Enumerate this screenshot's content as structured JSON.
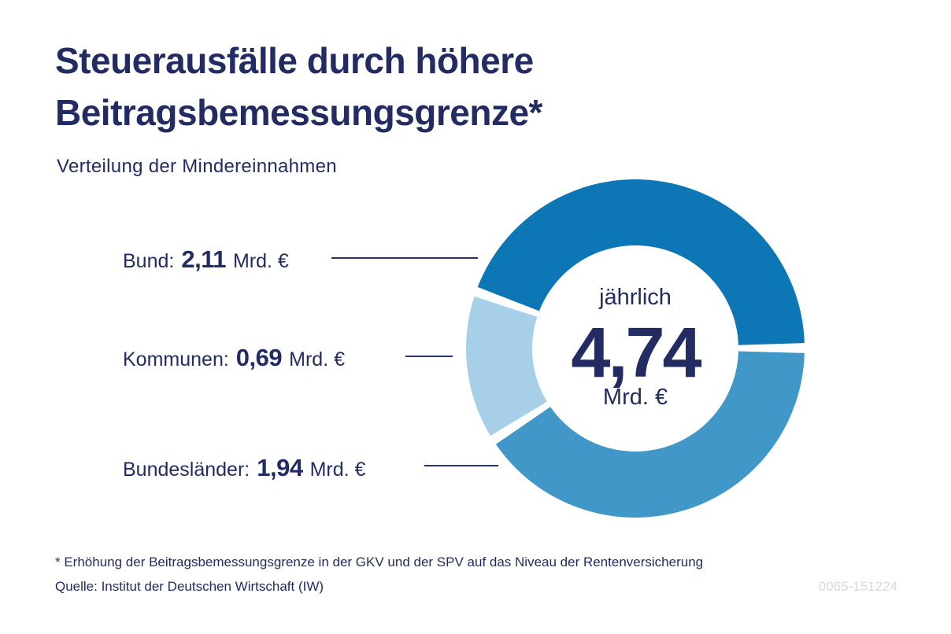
{
  "colors": {
    "navy_text": "#232c62",
    "leader_line": "#2a3170",
    "bund_dark_blue": "#0d76b5",
    "bundeslaender_medium_blue": "#4197c7",
    "kommunen_light_blue": "#a8cfe8",
    "figure_code_gray": "#d9d9d9",
    "background": "#ffffff"
  },
  "header": {
    "title_line1": "Steuerausfälle durch höhere",
    "title_line2": "Beitragsbemessungsgrenze*",
    "subtitle": "Verteilung der Mindereinnahmen"
  },
  "footer": {
    "footnote": "* Erhöhung der Beitragsbemessungsgrenze in der GKV und der SPV auf das Niveau der Rentenversicherung",
    "source": "Quelle: Institut der Deutschen Wirtschaft (IW)",
    "figure_code": "0065-151224"
  },
  "chart_data": {
    "type": "pie",
    "variant": "donut",
    "title": "Steuerausfälle durch höhere Beitragsbemessungsgrenze*",
    "subtitle": "Verteilung der Mindereinnahmen",
    "unit": "Mrd. €",
    "total": 4.74,
    "total_display": "4,74",
    "center_text": {
      "line1": "jährlich",
      "value": "4,74",
      "line2": "Mrd. €"
    },
    "start_angle_deg": 289.6,
    "gap_deg": 3.4,
    "outer_radius": 215,
    "inner_radius": 131,
    "segments": [
      {
        "name": "Bund",
        "label": "Bund:",
        "value": 2.11,
        "value_display": "2,11",
        "unit": "Mrd. €",
        "share_pct": 44.5,
        "color": "#0d76b5"
      },
      {
        "name": "Bundesländer",
        "label": "Bundesländer:",
        "value": 1.94,
        "value_display": "1,94",
        "unit": "Mrd. €",
        "share_pct": 40.9,
        "color": "#4197c7"
      },
      {
        "name": "Kommunen",
        "label": "Kommunen:",
        "value": 0.69,
        "value_display": "0,69",
        "unit": "Mrd. €",
        "share_pct": 14.6,
        "color": "#a8cfe8"
      }
    ],
    "legend_position": "left",
    "grid": false
  }
}
